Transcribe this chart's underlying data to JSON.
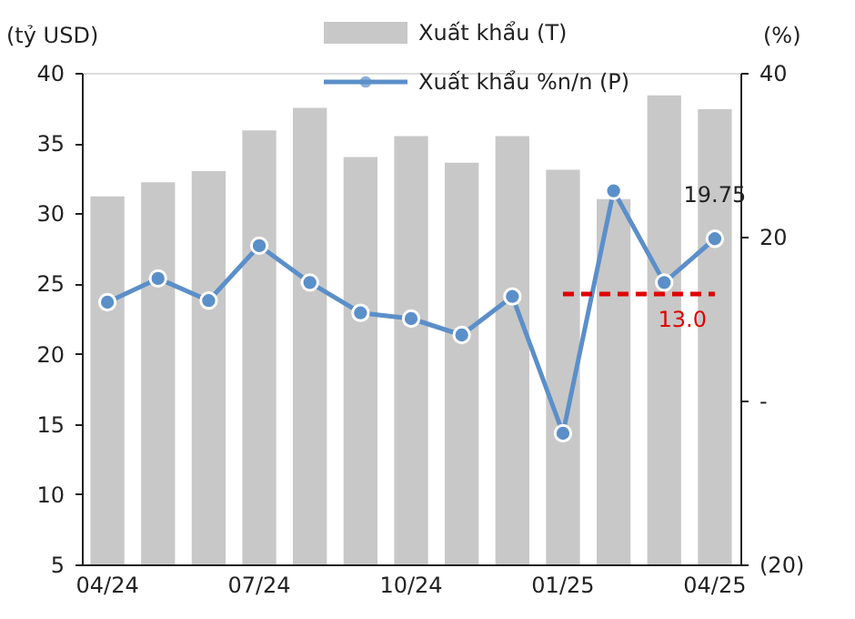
{
  "chart_data": {
    "type": "bar",
    "categories": [
      "04/24",
      null,
      null,
      "07/24",
      null,
      null,
      "10/24",
      null,
      null,
      "01/25",
      null,
      null,
      "04/25"
    ],
    "series": [
      {
        "name": "Xuất khẩu (T)",
        "color": "#c8c8c8",
        "values": [
          31.2,
          32.2,
          33.0,
          35.9,
          37.5,
          34.0,
          35.5,
          33.6,
          35.5,
          33.1,
          31.0,
          38.4,
          37.4
        ]
      },
      {
        "name": "Xuất khẩu %n/n (P)",
        "type": "line",
        "axis": "y2",
        "color": "#5b8fc9",
        "marker": "circle",
        "values": [
          12.0,
          14.9,
          12.2,
          18.9,
          14.4,
          10.7,
          10.0,
          8.0,
          12.7,
          -4.0,
          25.6,
          14.4,
          19.75
        ],
        "value_labels": [
          null,
          null,
          null,
          null,
          null,
          null,
          null,
          null,
          null,
          null,
          null,
          null,
          "19.75"
        ]
      }
    ],
    "ylabel": "(tỷ USD)",
    "y2label": "(%)",
    "ylim": [
      5,
      40
    ],
    "yticks": [
      5,
      10,
      15,
      20,
      25,
      30,
      35,
      40
    ],
    "y2lim": [
      -20,
      40
    ],
    "y2ticks": [
      {
        "value": -20,
        "label": "(20)"
      },
      {
        "value": 0,
        "label": "-"
      },
      20,
      40
    ],
    "ref_lines": [
      {
        "axis": "y2",
        "value": 13.0,
        "label": "13.0",
        "color": "#e00000",
        "line_style": "dashed"
      }
    ],
    "legend": "top right",
    "grid": false
  }
}
